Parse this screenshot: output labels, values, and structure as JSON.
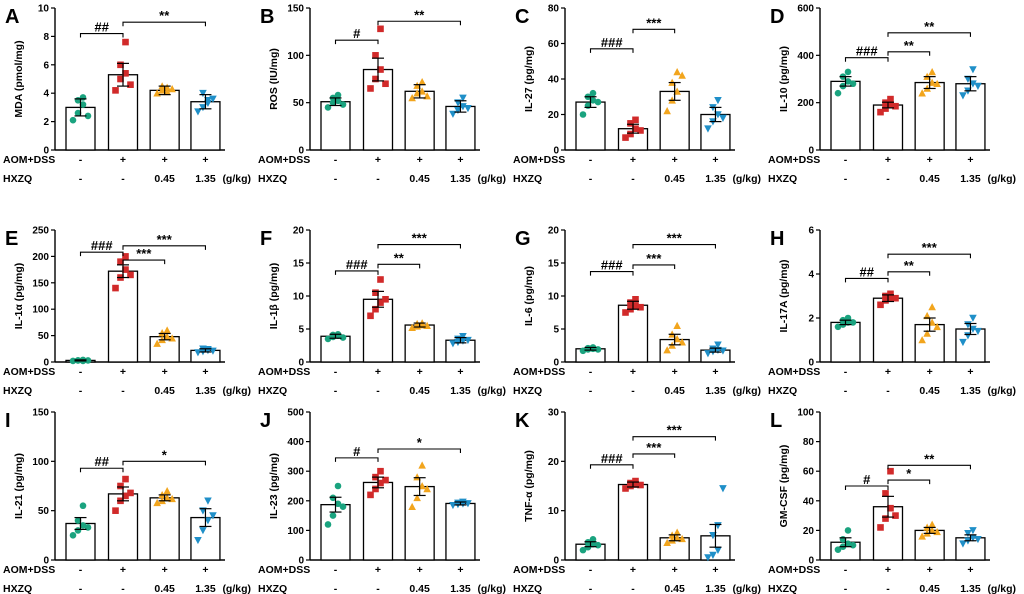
{
  "figure": {
    "conditions": [
      {
        "name": "AOM+DSS",
        "values": [
          "-",
          "+",
          "+",
          "+"
        ]
      },
      {
        "name": "HXZQ",
        "values": [
          "-",
          "-",
          "0.45",
          "1.35"
        ],
        "unit": "(g/kg)"
      }
    ],
    "group_colors": [
      "#1aa37f",
      "#d12a2a",
      "#f2a51d",
      "#1f8fc8"
    ]
  },
  "chart_data": [
    {
      "type": "bar",
      "label": "A",
      "ylabel": "MDA (pmol/mg)",
      "ylim": [
        0,
        10
      ],
      "yticks": [
        0,
        2,
        4,
        6,
        8,
        10
      ],
      "means": [
        3.0,
        5.3,
        4.2,
        3.4
      ],
      "sem": [
        0.6,
        0.8,
        0.3,
        0.5
      ],
      "points": [
        [
          2.1,
          2.6,
          3.2,
          3.5,
          3.7,
          2.4
        ],
        [
          4.2,
          5.0,
          5.4,
          6.0,
          7.6,
          4.6
        ],
        [
          4.0,
          4.2,
          4.4,
          4.5,
          4.1,
          4.3
        ],
        [
          2.7,
          3.0,
          3.5,
          4.0,
          3.3,
          3.6
        ]
      ],
      "comparisons": [
        {
          "from": 0,
          "to": 1,
          "label": "##",
          "y": 8.2
        },
        {
          "from": 1,
          "to": 3,
          "label": "**",
          "y": 9.0
        }
      ]
    },
    {
      "type": "bar",
      "label": "B",
      "ylabel": "ROS (IU/mg)",
      "ylim": [
        0,
        150
      ],
      "yticks": [
        0,
        50,
        100,
        150
      ],
      "means": [
        51,
        85,
        62,
        46
      ],
      "sem": [
        4,
        12,
        7,
        6
      ],
      "points": [
        [
          45,
          50,
          52,
          55,
          58,
          48
        ],
        [
          65,
          75,
          85,
          100,
          128,
          70
        ],
        [
          55,
          60,
          62,
          68,
          72,
          57
        ],
        [
          38,
          42,
          46,
          50,
          55,
          44
        ]
      ],
      "comparisons": [
        {
          "from": 0,
          "to": 1,
          "label": "#",
          "y": 116
        },
        {
          "from": 1,
          "to": 3,
          "label": "**",
          "y": 136
        }
      ]
    },
    {
      "type": "bar",
      "label": "C",
      "ylabel": "IL-27 (pg/mg)",
      "ylim": [
        0,
        80
      ],
      "yticks": [
        0,
        20,
        40,
        60,
        80
      ],
      "means": [
        27,
        12,
        33,
        20
      ],
      "sem": [
        3,
        2.5,
        5,
        4
      ],
      "points": [
        [
          20,
          25,
          28,
          30,
          32,
          27
        ],
        [
          7,
          9,
          12,
          15,
          17,
          11
        ],
        [
          22,
          28,
          33,
          38,
          44,
          42
        ],
        [
          12,
          16,
          20,
          24,
          28,
          18
        ]
      ],
      "comparisons": [
        {
          "from": 0,
          "to": 1,
          "label": "###",
          "y": 57
        },
        {
          "from": 1,
          "to": 2,
          "label": "***",
          "y": 68
        }
      ]
    },
    {
      "type": "bar",
      "label": "D",
      "ylabel": "IL-10 (pg/mg)",
      "ylim": [
        0,
        600
      ],
      "yticks": [
        0,
        200,
        400,
        600
      ],
      "means": [
        290,
        190,
        285,
        280
      ],
      "sem": [
        20,
        12,
        25,
        30
      ],
      "points": [
        [
          240,
          270,
          290,
          310,
          330,
          280
        ],
        [
          160,
          175,
          190,
          200,
          215,
          185
        ],
        [
          240,
          260,
          285,
          310,
          330,
          280
        ],
        [
          230,
          250,
          280,
          300,
          340,
          270
        ]
      ],
      "comparisons": [
        {
          "from": 0,
          "to": 1,
          "label": "###",
          "y": 390
        },
        {
          "from": 1,
          "to": 2,
          "label": "**",
          "y": 415
        },
        {
          "from": 1,
          "to": 3,
          "label": "**",
          "y": 495
        }
      ]
    },
    {
      "type": "bar",
      "label": "E",
      "ylabel": "IL-1α (pg/mg)",
      "ylim": [
        0,
        250
      ],
      "yticks": [
        0,
        50,
        100,
        150,
        200,
        250
      ],
      "means": [
        3,
        172,
        48,
        22
      ],
      "sem": [
        1,
        12,
        6,
        3
      ],
      "points": [
        [
          2,
          3,
          4,
          3,
          2,
          3
        ],
        [
          140,
          160,
          175,
          190,
          200,
          165
        ],
        [
          35,
          42,
          48,
          55,
          60,
          45
        ],
        [
          18,
          20,
          22,
          25,
          24,
          21
        ]
      ],
      "comparisons": [
        {
          "from": 0,
          "to": 1,
          "label": "###",
          "y": 208
        },
        {
          "from": 1,
          "to": 2,
          "label": "***",
          "y": 193
        },
        {
          "from": 1,
          "to": 3,
          "label": "***",
          "y": 220
        }
      ]
    },
    {
      "type": "bar",
      "label": "F",
      "ylabel": "IL-1β (pg/mg)",
      "ylim": [
        0,
        20
      ],
      "yticks": [
        0,
        5,
        10,
        15,
        20
      ],
      "means": [
        3.9,
        9.5,
        5.6,
        3.3
      ],
      "sem": [
        0.3,
        1.2,
        0.3,
        0.4
      ],
      "points": [
        [
          3.5,
          3.8,
          4.0,
          4.1,
          4.2,
          3.7
        ],
        [
          7.0,
          8.0,
          9.0,
          10.5,
          12.5,
          9.5
        ],
        [
          5.2,
          5.4,
          5.6,
          5.8,
          5.9,
          5.5
        ],
        [
          2.8,
          3.0,
          3.2,
          3.5,
          3.9,
          3.3
        ]
      ],
      "comparisons": [
        {
          "from": 0,
          "to": 1,
          "label": "###",
          "y": 13.8
        },
        {
          "from": 1,
          "to": 2,
          "label": "**",
          "y": 14.8
        },
        {
          "from": 1,
          "to": 3,
          "label": "***",
          "y": 17.8
        }
      ]
    },
    {
      "type": "bar",
      "label": "G",
      "ylabel": "IL-6 (pg/mg)",
      "ylim": [
        0,
        20
      ],
      "yticks": [
        0,
        5,
        10,
        15,
        20
      ],
      "means": [
        2.0,
        8.6,
        3.4,
        1.8
      ],
      "sem": [
        0.2,
        0.6,
        0.8,
        0.3
      ],
      "points": [
        [
          1.7,
          1.9,
          2.0,
          2.1,
          2.2,
          1.9
        ],
        [
          7.5,
          8.0,
          8.5,
          9.0,
          9.5,
          8.3
        ],
        [
          1.8,
          2.5,
          3.5,
          4.2,
          5.5,
          3.0
        ],
        [
          1.3,
          1.6,
          1.8,
          2.0,
          2.6,
          1.7
        ]
      ],
      "comparisons": [
        {
          "from": 0,
          "to": 1,
          "label": "###",
          "y": 13.7
        },
        {
          "from": 1,
          "to": 2,
          "label": "***",
          "y": 14.7
        },
        {
          "from": 1,
          "to": 3,
          "label": "***",
          "y": 17.8
        }
      ]
    },
    {
      "type": "bar",
      "label": "H",
      "ylabel": "IL-17A (pg/mg)",
      "ylim": [
        0,
        6
      ],
      "yticks": [
        0,
        2,
        4,
        6
      ],
      "means": [
        1.8,
        2.9,
        1.7,
        1.5
      ],
      "sem": [
        0.1,
        0.15,
        0.3,
        0.25
      ],
      "points": [
        [
          1.6,
          1.7,
          1.8,
          1.9,
          2.0,
          1.8
        ],
        [
          2.6,
          2.8,
          2.9,
          3.0,
          3.1,
          2.9
        ],
        [
          1.0,
          1.3,
          1.8,
          2.1,
          2.5,
          1.6
        ],
        [
          0.9,
          1.2,
          1.5,
          1.7,
          2.0,
          1.4
        ]
      ],
      "comparisons": [
        {
          "from": 0,
          "to": 1,
          "label": "##",
          "y": 3.8
        },
        {
          "from": 1,
          "to": 2,
          "label": "**",
          "y": 4.1
        },
        {
          "from": 1,
          "to": 3,
          "label": "***",
          "y": 4.9
        }
      ]
    },
    {
      "type": "bar",
      "label": "I",
      "ylabel": "IL-21 (pg/mg)",
      "ylim": [
        0,
        150
      ],
      "yticks": [
        0,
        50,
        100,
        150
      ],
      "means": [
        37,
        67,
        63,
        43
      ],
      "sem": [
        6,
        7,
        3,
        9
      ],
      "points": [
        [
          25,
          30,
          35,
          40,
          55,
          33
        ],
        [
          50,
          60,
          65,
          75,
          82,
          68
        ],
        [
          58,
          60,
          63,
          66,
          70,
          62
        ],
        [
          20,
          30,
          40,
          50,
          60,
          45
        ]
      ],
      "comparisons": [
        {
          "from": 0,
          "to": 1,
          "label": "##",
          "y": 93
        },
        {
          "from": 1,
          "to": 3,
          "label": "*",
          "y": 100
        }
      ]
    },
    {
      "type": "bar",
      "label": "J",
      "ylabel": "IL-23 (pg/mg)",
      "ylim": [
        0,
        500
      ],
      "yticks": [
        0,
        100,
        200,
        300,
        400,
        500
      ],
      "means": [
        187,
        262,
        248,
        191
      ],
      "sem": [
        25,
        18,
        30,
        5
      ],
      "points": [
        [
          120,
          150,
          190,
          210,
          250,
          180
        ],
        [
          220,
          240,
          260,
          280,
          300,
          270
        ],
        [
          180,
          210,
          250,
          280,
          320,
          240
        ],
        [
          185,
          188,
          190,
          193,
          196,
          191
        ]
      ],
      "comparisons": [
        {
          "from": 0,
          "to": 1,
          "label": "#",
          "y": 345
        },
        {
          "from": 1,
          "to": 3,
          "label": "*",
          "y": 375
        }
      ]
    },
    {
      "type": "bar",
      "label": "K",
      "ylabel": "TNF-α (pg/mg)",
      "ylim": [
        0,
        30
      ],
      "yticks": [
        0,
        10,
        20,
        30
      ],
      "means": [
        3.2,
        15.3,
        4.5,
        4.9
      ],
      "sem": [
        0.5,
        0.5,
        0.6,
        2.3
      ],
      "points": [
        [
          2.0,
          2.6,
          3.2,
          3.6,
          4.2,
          3.0
        ],
        [
          14.5,
          15.0,
          15.3,
          15.6,
          16.0,
          15.2
        ],
        [
          3.5,
          4.0,
          4.5,
          5.0,
          5.6,
          4.3
        ],
        [
          0.5,
          1.0,
          2.0,
          5.0,
          7.0,
          14.5
        ]
      ],
      "comparisons": [
        {
          "from": 0,
          "to": 1,
          "label": "###",
          "y": 19.3
        },
        {
          "from": 1,
          "to": 2,
          "label": "***",
          "y": 21.5
        },
        {
          "from": 1,
          "to": 3,
          "label": "***",
          "y": 25.0
        }
      ]
    },
    {
      "type": "bar",
      "label": "L",
      "ylabel": "GM-CSF (pg/mg)",
      "ylim": [
        0,
        100
      ],
      "yticks": [
        0,
        20,
        40,
        60,
        80,
        100
      ],
      "means": [
        12,
        36,
        20,
        15
      ],
      "sem": [
        3,
        7,
        2,
        2
      ],
      "points": [
        [
          7,
          9,
          11,
          14,
          20,
          10
        ],
        [
          22,
          28,
          35,
          45,
          60,
          30
        ],
        [
          16,
          18,
          20,
          22,
          24,
          19
        ],
        [
          11,
          13,
          15,
          18,
          20,
          14
        ]
      ],
      "comparisons": [
        {
          "from": 0,
          "to": 1,
          "label": "#",
          "y": 50
        },
        {
          "from": 1,
          "to": 2,
          "label": "*",
          "y": 54
        },
        {
          "from": 1,
          "to": 3,
          "label": "**",
          "y": 64
        }
      ]
    }
  ]
}
